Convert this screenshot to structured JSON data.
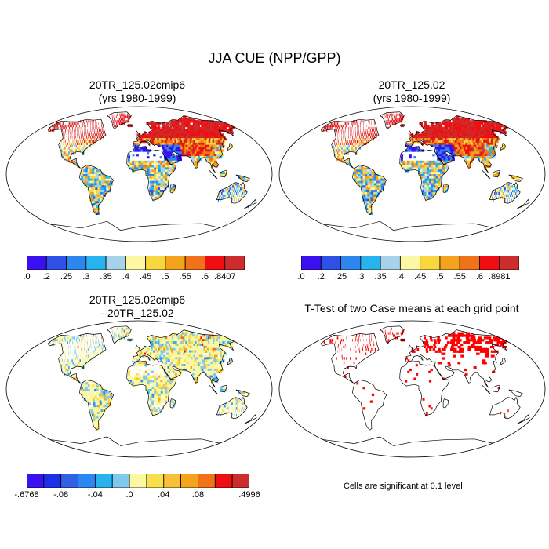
{
  "title": "JJA CUE (NPP/GPP)",
  "panels": {
    "a": {
      "title1": "20TR_125.02cmip6",
      "title2": "(yrs 1980-1999)"
    },
    "b": {
      "title1": "20TR_125.02",
      "title2": "(yrs 1980-1999)"
    },
    "c": {
      "title1": "20TR_125.02cmip6",
      "title2": "- 20TR_125.02"
    },
    "d": {
      "title1": "T-Test of two Case means at each grid point"
    }
  },
  "colorbars": {
    "a": {
      "colors": [
        "#3a0ff0",
        "#2f50e6",
        "#2d85f0",
        "#29b3ee",
        "#a6d2ec",
        "#fbf7a2",
        "#f8d63d",
        "#f5a31c",
        "#f0731b",
        "#ef0f12",
        "#cc2c2c"
      ],
      "labels": [
        ".0",
        ".2",
        ".25",
        ".3",
        ".35",
        ".4",
        ".45",
        ".5",
        ".55",
        ".6",
        ".8407"
      ]
    },
    "b": {
      "colors": [
        "#3a0ff0",
        "#2f50e6",
        "#2d85f0",
        "#29b3ee",
        "#a6d2ec",
        "#fbf7a2",
        "#f8d63d",
        "#f5a31c",
        "#f0731b",
        "#ef0f12",
        "#cc2c2c"
      ],
      "labels": [
        ".0",
        ".2",
        ".25",
        ".3",
        ".35",
        ".4",
        ".45",
        ".5",
        ".55",
        ".6",
        ".8981"
      ]
    },
    "c": {
      "colors": [
        "#3a0ff0",
        "#1f2fe8",
        "#2f60e6",
        "#2d85f0",
        "#29b3ee",
        "#7fc8ef",
        "#fbf7a2",
        "#f8e04a",
        "#f8c035",
        "#f5a31c",
        "#f0731b",
        "#ef0f12",
        "#cc2c2c"
      ],
      "labels": [
        "-.6768",
        "-.08",
        "-.04",
        ".0",
        ".04",
        ".08",
        ".4996"
      ]
    }
  },
  "note": "Cells are significant at 0.1 level",
  "colors": {
    "land_outline": "#000000",
    "significant": "#ff0000"
  }
}
